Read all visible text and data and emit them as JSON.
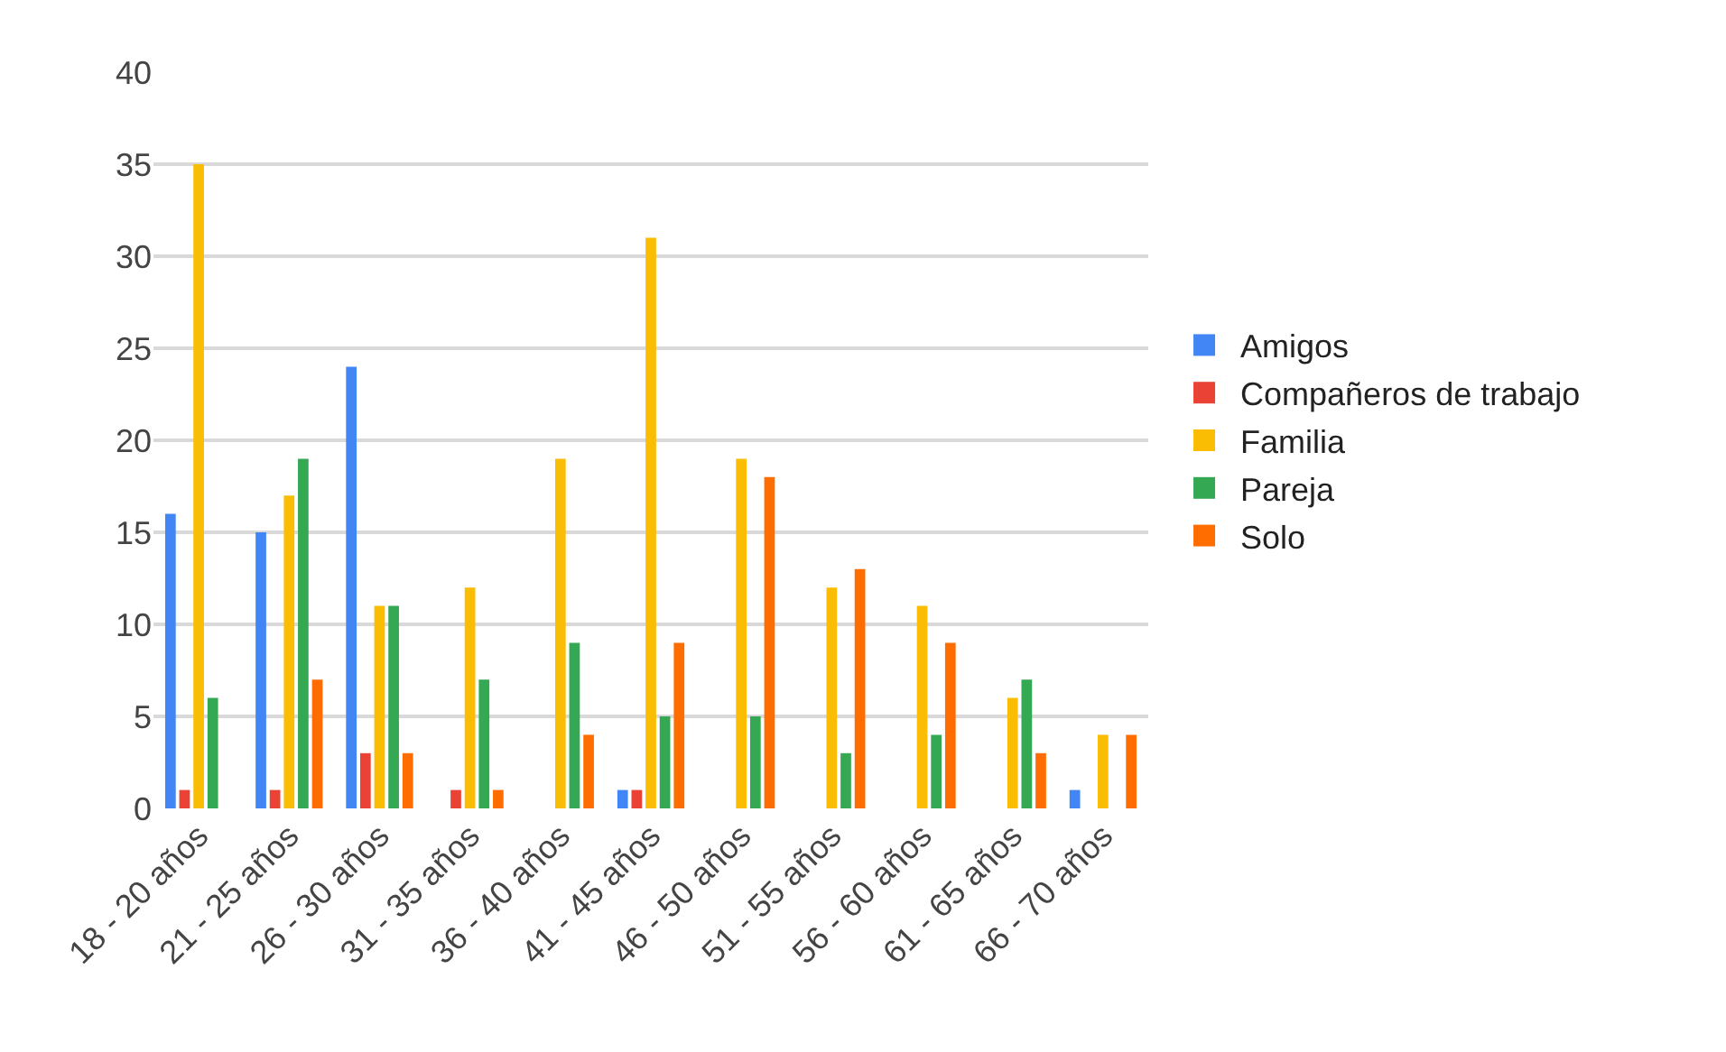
{
  "chart_data": {
    "type": "bar",
    "categories": [
      "18 - 20 años",
      "21 - 25 años",
      "26 - 30 años",
      "31 - 35 años",
      "36 - 40 años",
      "41 - 45 años",
      "46 - 50 años",
      "51 - 55 años",
      "56 - 60 años",
      "61 - 65 años",
      "66 - 70 años"
    ],
    "series": [
      {
        "name": "Amigos",
        "color": "#4285f4",
        "values": [
          16,
          15,
          24,
          null,
          null,
          1,
          null,
          null,
          null,
          null,
          1
        ]
      },
      {
        "name": "Compañeros de trabajo",
        "color": "#ea4335",
        "values": [
          1,
          1,
          3,
          1,
          null,
          1,
          null,
          null,
          null,
          null,
          null
        ]
      },
      {
        "name": "Familia",
        "color": "#fbbc04",
        "values": [
          35,
          17,
          11,
          12,
          19,
          31,
          19,
          12,
          11,
          6,
          4
        ]
      },
      {
        "name": "Pareja",
        "color": "#34a853",
        "values": [
          6,
          19,
          11,
          7,
          9,
          5,
          5,
          3,
          4,
          7,
          null
        ]
      },
      {
        "name": "Solo",
        "color": "#ff6d01",
        "values": [
          null,
          7,
          3,
          1,
          4,
          9,
          18,
          13,
          9,
          3,
          4
        ]
      }
    ],
    "ylim": [
      0,
      40
    ],
    "yticks": [
      0,
      5,
      10,
      15,
      20,
      25,
      30,
      35,
      40
    ],
    "grid": "y",
    "legend": "right"
  }
}
